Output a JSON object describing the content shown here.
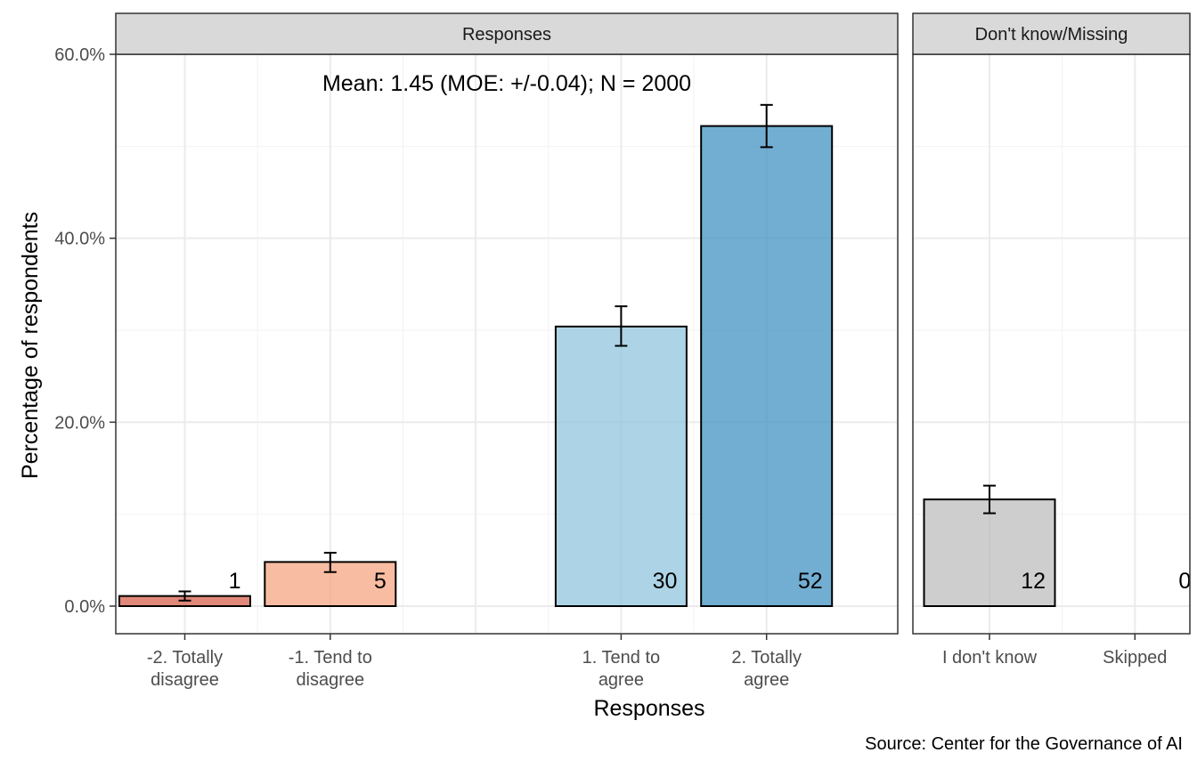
{
  "chart_data": {
    "type": "bar",
    "ylabel": "Percentage of respondents",
    "xlabel": "Responses",
    "caption": "Source: Center for the Governance of AI",
    "ylim": [
      -3,
      60
    ],
    "y_ticks": [
      0,
      20,
      40,
      60
    ],
    "y_tick_labels": [
      "0.0%",
      "20.0%",
      "40.0%",
      "60.0%"
    ],
    "grid": true,
    "annotation": "Mean: 1.45 (MOE: +/-0.04); N = 2000",
    "panels": [
      {
        "name": "Responses",
        "categories": [
          {
            "label": [
              "-2. Totally",
              "disagree"
            ],
            "value": 1.1,
            "err": [
              0.6,
              1.6
            ],
            "count_label": "1",
            "color": "#d6604d"
          },
          {
            "label": [
              "-1. Tend to",
              "disagree"
            ],
            "value": 4.8,
            "err": [
              3.7,
              5.8
            ],
            "count_label": "5",
            "color": "#f4a582"
          },
          {
            "label": [],
            "value": null,
            "err": null,
            "count_label": "",
            "color": ""
          },
          {
            "label": [
              "1. Tend to",
              "agree"
            ],
            "value": 30.4,
            "err": [
              28.3,
              32.6
            ],
            "count_label": "30",
            "color": "#92c5de"
          },
          {
            "label": [
              "2. Totally",
              "agree"
            ],
            "value": 52.2,
            "err": [
              49.9,
              54.5
            ],
            "count_label": "52",
            "color": "#4393c3"
          }
        ]
      },
      {
        "name": "Don't know/Missing",
        "categories": [
          {
            "label": [
              "I don't know"
            ],
            "value": 11.6,
            "err": [
              10.1,
              13.1
            ],
            "count_label": "12",
            "color": "#bdbdbd"
          },
          {
            "label": [
              "Skipped"
            ],
            "value": 0,
            "err": null,
            "count_label": "0",
            "color": "#bdbdbd"
          }
        ]
      }
    ]
  }
}
